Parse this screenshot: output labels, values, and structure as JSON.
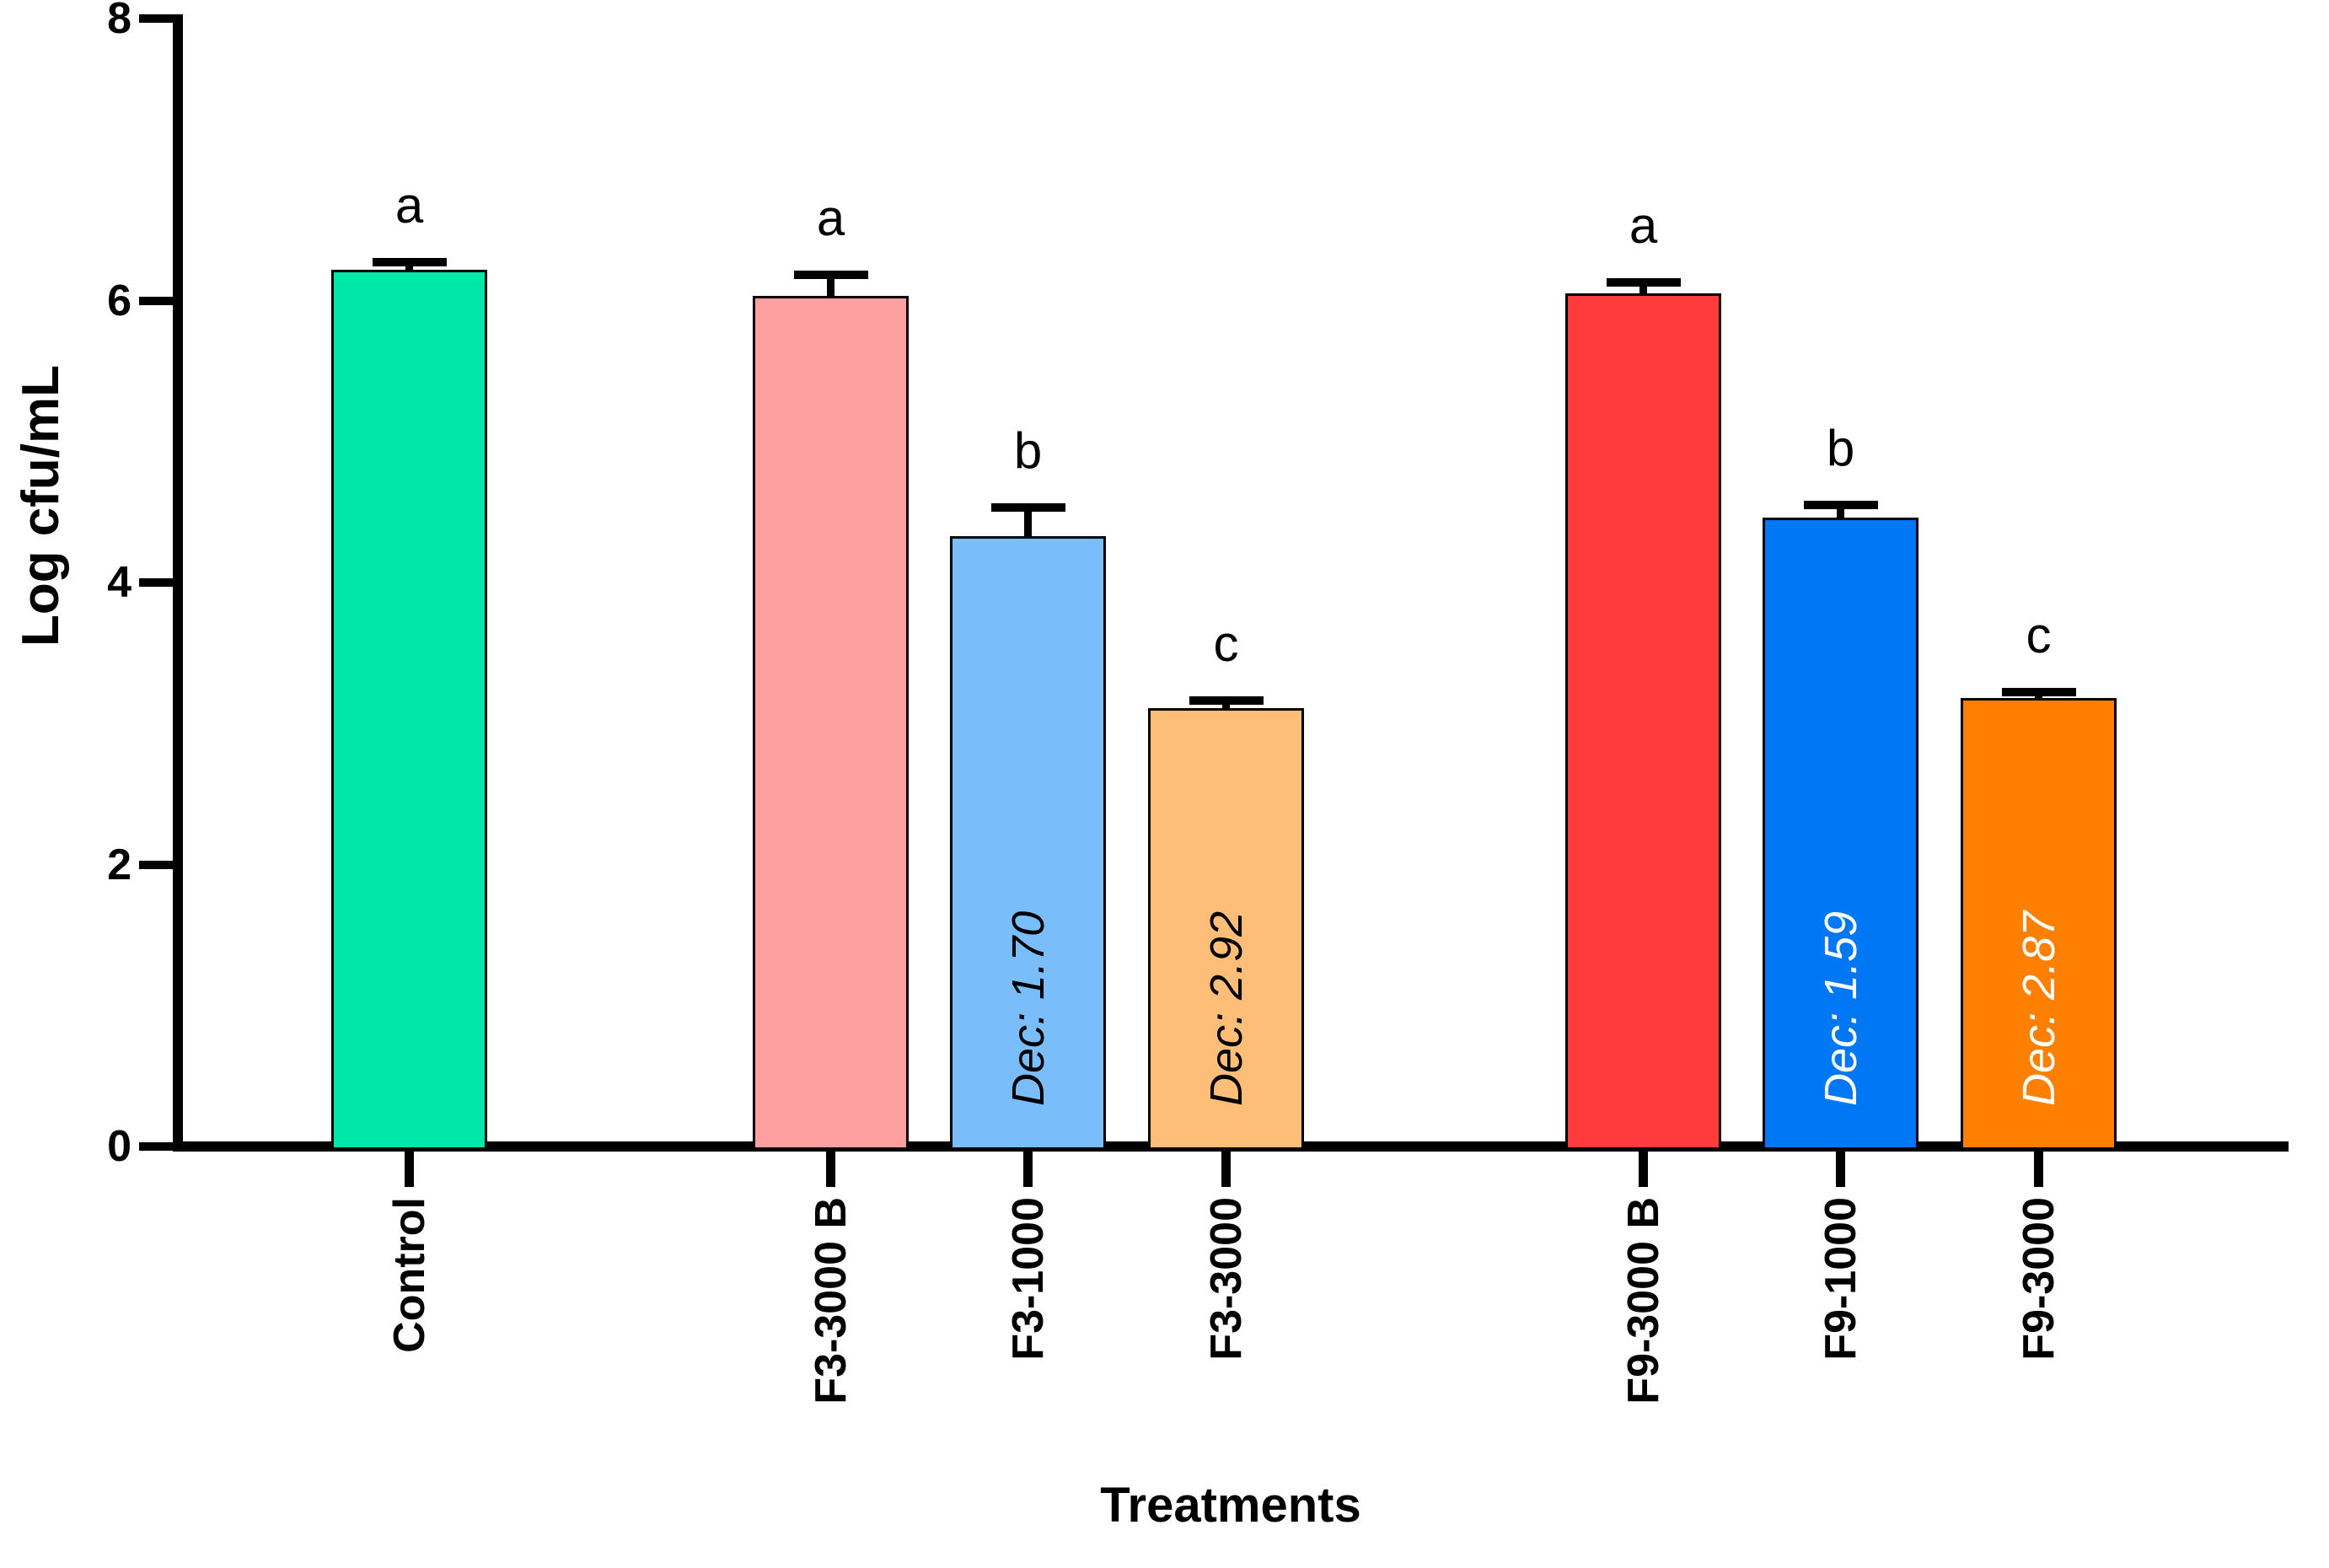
{
  "chart_data": {
    "type": "bar",
    "title": "",
    "xlabel": "Treatments",
    "ylabel": "Log cfu/mL",
    "ylim": [
      0,
      8
    ],
    "yticks": [
      0,
      2,
      4,
      6,
      8
    ],
    "grid": false,
    "legend": "none",
    "categories": [
      "Control",
      "F3-3000 B",
      "F3-1000",
      "F3-3000",
      "F9-3000 B",
      "F9-1000",
      "F9-3000"
    ],
    "values": [
      6.22,
      6.03,
      4.33,
      3.11,
      6.05,
      4.46,
      3.18
    ],
    "errors_upper": [
      0.05,
      0.15,
      0.2,
      0.05,
      0.08,
      0.09,
      0.04
    ],
    "significance_letters": [
      "a",
      "a",
      "b",
      "c",
      "a",
      "b",
      "c"
    ],
    "bars": [
      {
        "label": "Control",
        "value": 6.22,
        "error": 0.05,
        "letter": "a",
        "color": "#00E8A9",
        "annotation": "",
        "annotation_color": "#000000",
        "group": 0
      },
      {
        "label": "F3-3000 B",
        "value": 6.03,
        "error": 0.15,
        "letter": "a",
        "color": "#FFA0A0",
        "annotation": "",
        "annotation_color": "#000000",
        "group": 1
      },
      {
        "label": "F3-1000",
        "value": 4.33,
        "error": 0.2,
        "letter": "b",
        "color": "#79BDFB",
        "annotation": "Dec: 1.70",
        "annotation_color": "#000000",
        "group": 1
      },
      {
        "label": "F3-3000",
        "value": 3.11,
        "error": 0.05,
        "letter": "c",
        "color": "#FFBE78",
        "annotation": "Dec: 2.92",
        "annotation_color": "#000000",
        "group": 1
      },
      {
        "label": "F9-3000 B",
        "value": 6.05,
        "error": 0.08,
        "letter": "a",
        "color": "#FF3B3B",
        "annotation": "",
        "annotation_color": "#FFFFFF",
        "group": 2
      },
      {
        "label": "F9-1000",
        "value": 4.46,
        "error": 0.09,
        "letter": "b",
        "color": "#0077F5",
        "annotation": "Dec: 1.59",
        "annotation_color": "#FFFFFF",
        "group": 2
      },
      {
        "label": "F9-3000",
        "value": 3.18,
        "error": 0.04,
        "letter": "c",
        "color": "#FF8000",
        "annotation": "Dec: 2.87",
        "annotation_color": "#FFFFFF",
        "group": 2
      }
    ],
    "axis_color": "#000000",
    "text_color": "#000000"
  }
}
